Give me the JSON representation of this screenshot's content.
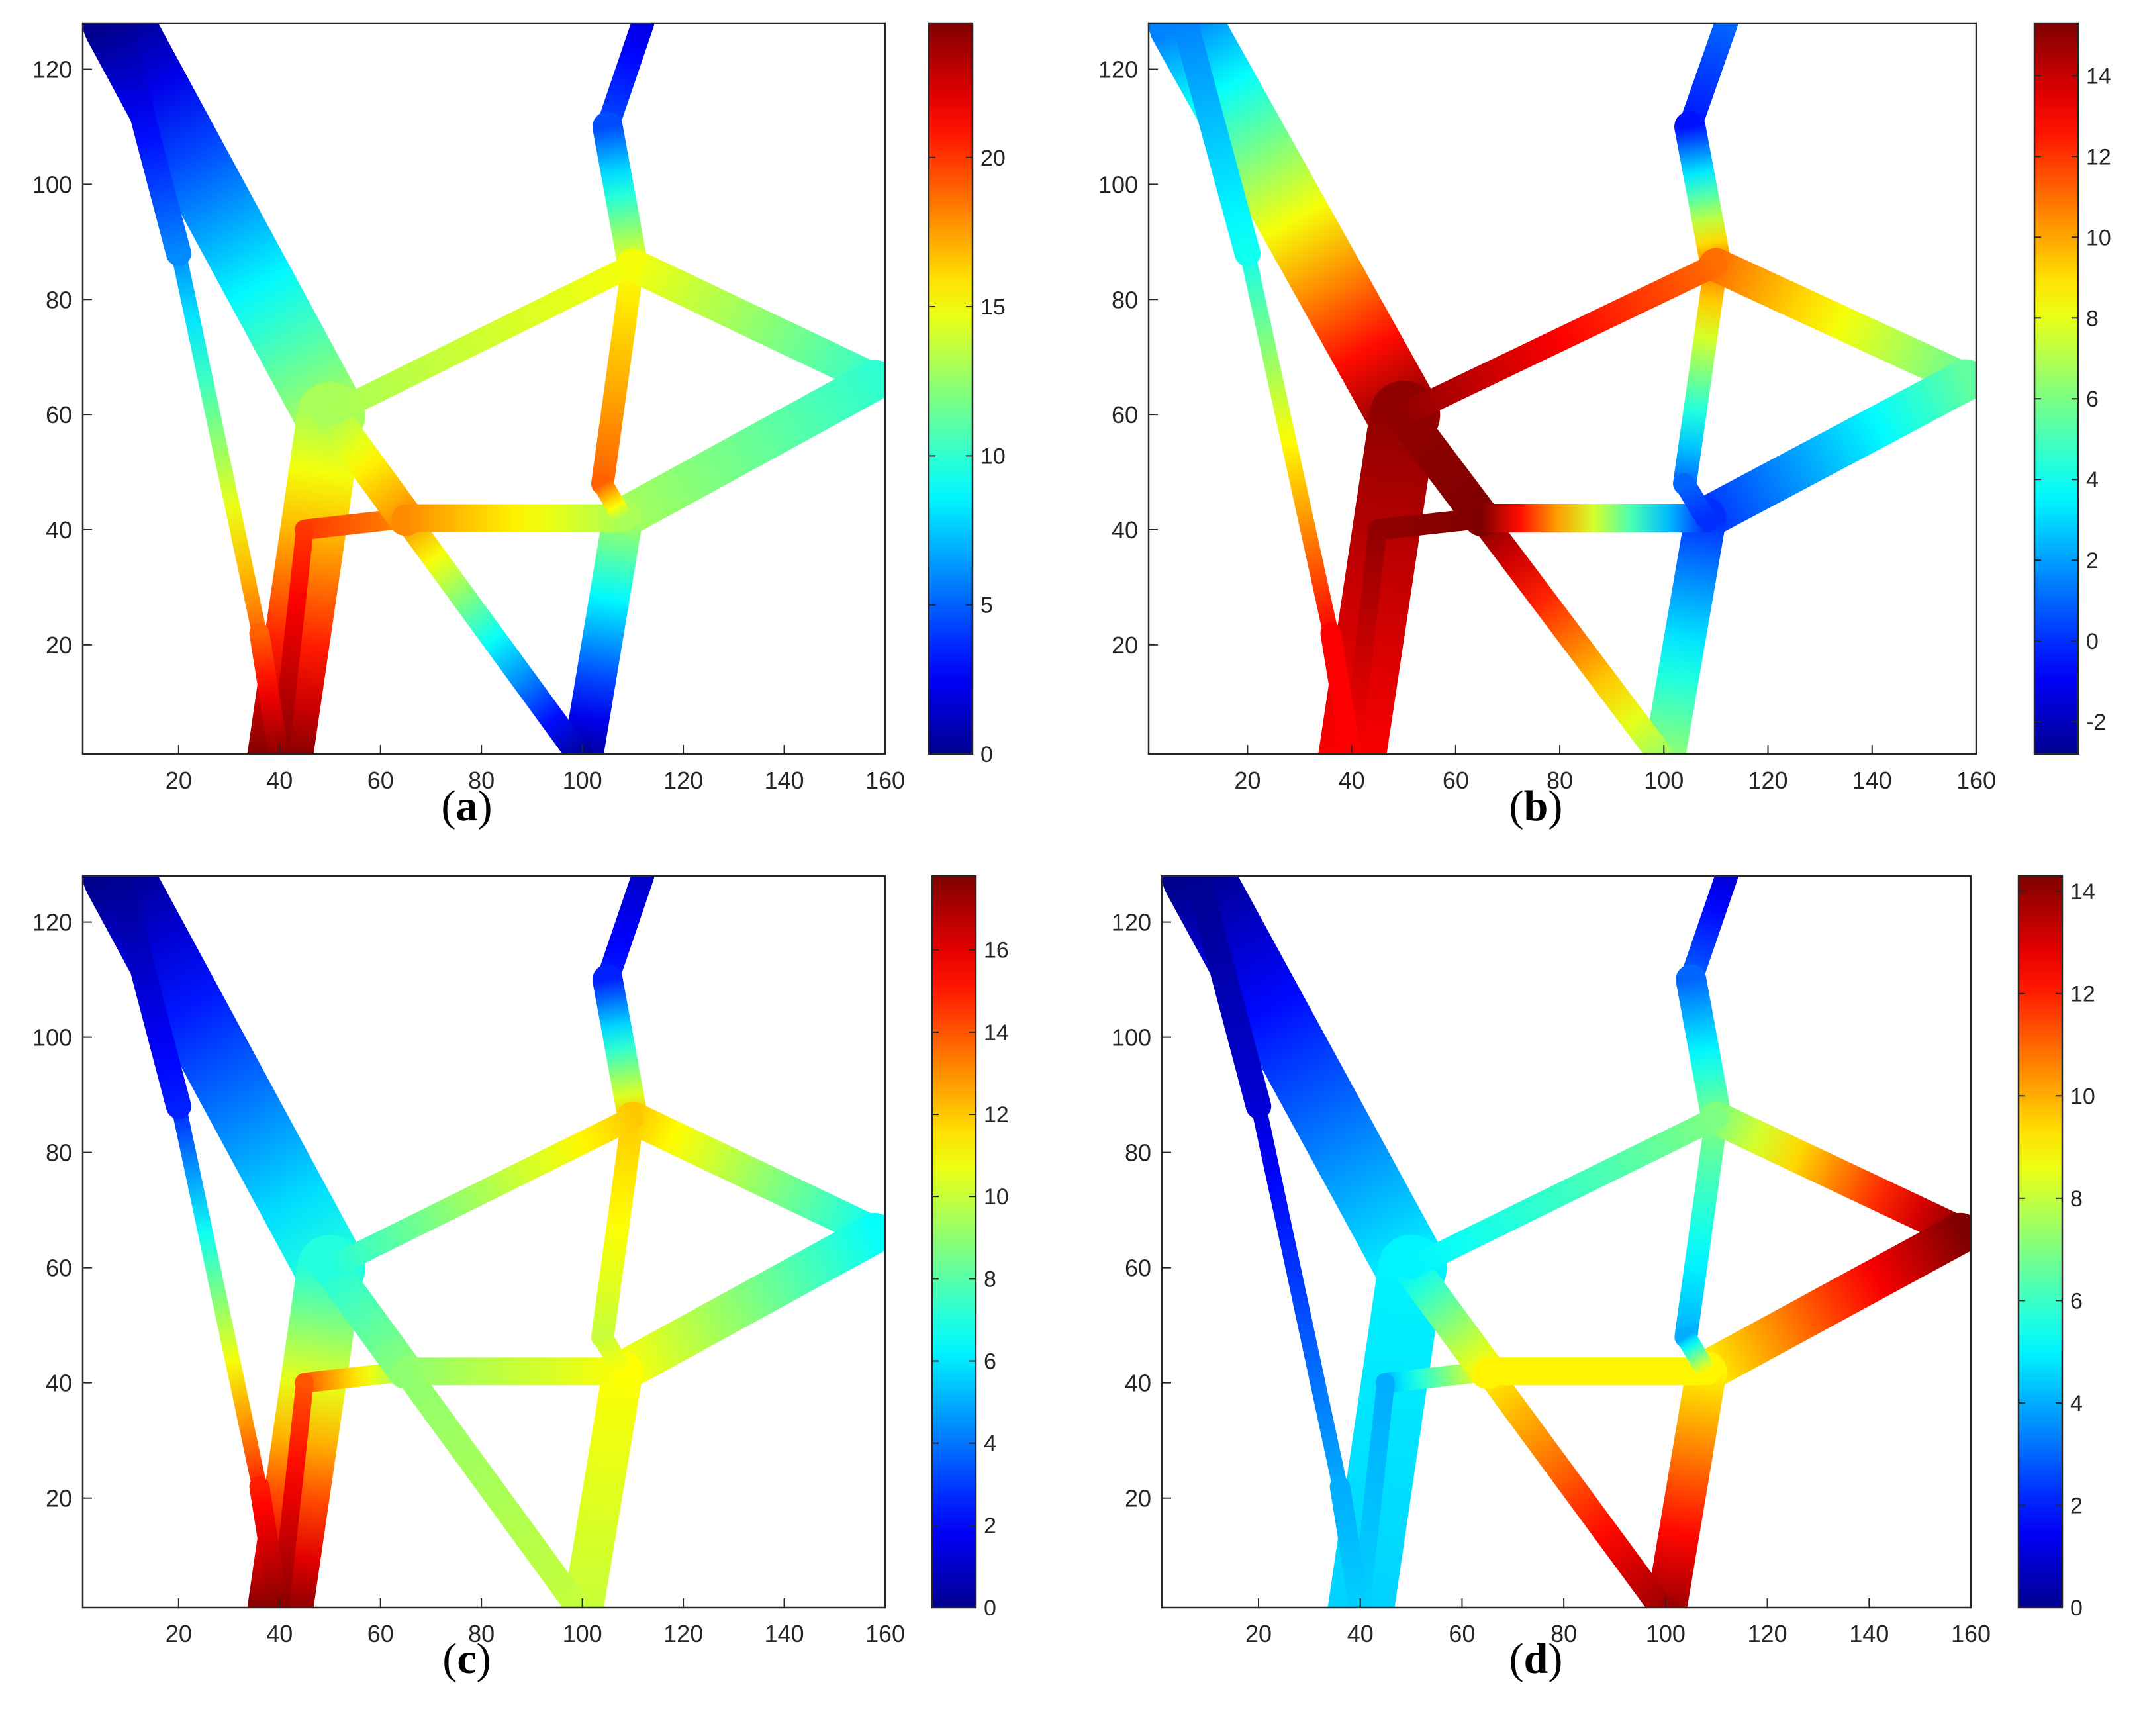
{
  "figure": {
    "colormap": "jet",
    "colormap_stops": [
      "#00008f",
      "#0000ff",
      "#00ffff",
      "#ffff00",
      "#ff0000",
      "#800000"
    ],
    "background": "#ffffff"
  },
  "chart_data": [
    {
      "type": "heatmap",
      "panel": "a",
      "caption": "a",
      "xlabel": "",
      "ylabel": "",
      "xlim": [
        1,
        160
      ],
      "ylim": [
        1,
        128
      ],
      "xticks": [
        20,
        40,
        60,
        80,
        100,
        120,
        140,
        160
      ],
      "yticks": [
        20,
        40,
        60,
        80,
        100,
        120
      ],
      "colorbar": {
        "range": [
          0,
          24.5
        ],
        "ticks": [
          0,
          5,
          10,
          15,
          20
        ]
      },
      "node_values": {
        "TL": 0,
        "TR": 2,
        "VJ": 4.5,
        "RT": 10,
        "UJ": 13,
        "B40": 24.5,
        "B100": 0,
        "CJ": 18,
        "RJ": 13,
        "WT": 15,
        "VB": 19,
        "LI": 6,
        "LIB": 19,
        "IN": 20
      }
    },
    {
      "type": "heatmap",
      "panel": "b",
      "caption": "b",
      "xlabel": "",
      "ylabel": "",
      "xlim": [
        1,
        160
      ],
      "ylim": [
        1,
        128
      ],
      "xticks": [
        20,
        40,
        60,
        80,
        100,
        120,
        140,
        160
      ],
      "yticks": [
        20,
        40,
        60,
        80,
        100,
        120
      ],
      "colorbar": {
        "range": [
          -2.8,
          15.3
        ],
        "ticks": [
          -2,
          0,
          2,
          4,
          6,
          8,
          10,
          12,
          14
        ]
      },
      "node_values": {
        "TL": 1.5,
        "TR": 1,
        "VJ": -0.5,
        "RT": 5.5,
        "UJ": 15,
        "B40": 13,
        "B100": 6.5,
        "CJ": 15.3,
        "RJ": 0,
        "WT": 11,
        "VB": 1,
        "LI": 4,
        "LIB": 13,
        "IN": 15
      }
    },
    {
      "type": "heatmap",
      "panel": "c",
      "caption": "c",
      "xlabel": "",
      "ylabel": "",
      "xlim": [
        1,
        160
      ],
      "ylim": [
        1,
        128
      ],
      "xticks": [
        20,
        40,
        60,
        80,
        100,
        120,
        140,
        160
      ],
      "yticks": [
        20,
        40,
        60,
        80,
        100,
        120
      ],
      "colorbar": {
        "range": [
          0,
          17.8
        ],
        "ticks": [
          0,
          2,
          4,
          6,
          8,
          10,
          12,
          14,
          16
        ]
      },
      "node_values": {
        "TL": 0,
        "TR": 1,
        "VJ": 2.5,
        "RT": 6.5,
        "UJ": 7,
        "B40": 17.8,
        "B100": 10,
        "CJ": 9,
        "RJ": 11,
        "WT": 12,
        "VB": 10,
        "LI": 2.5,
        "LIB": 15,
        "IN": 14
      }
    },
    {
      "type": "heatmap",
      "panel": "d",
      "caption": "d",
      "xlabel": "",
      "ylabel": "",
      "xlim": [
        1,
        160
      ],
      "ylim": [
        1,
        128
      ],
      "xticks": [
        20,
        40,
        60,
        80,
        100,
        120,
        140,
        160
      ],
      "yticks": [
        20,
        40,
        60,
        80,
        100,
        120
      ],
      "colorbar": {
        "range": [
          0,
          14.3
        ],
        "ticks": [
          0,
          2,
          4,
          6,
          8,
          10,
          12,
          14
        ]
      },
      "node_values": {
        "TL": 0,
        "TR": 1,
        "VJ": 3,
        "RT": 14.3,
        "UJ": 5,
        "B40": 4.5,
        "B100": 14,
        "CJ": 9,
        "RJ": 9,
        "WT": 7,
        "VB": 4,
        "LI": 1,
        "LIB": 4,
        "IN": 4
      }
    }
  ]
}
